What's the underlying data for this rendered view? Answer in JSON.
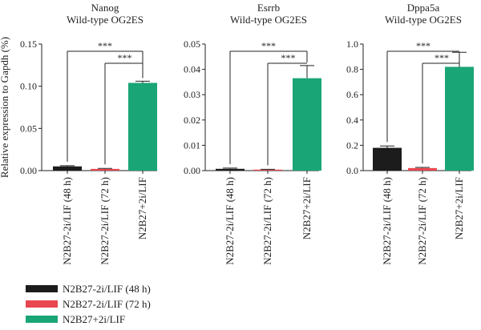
{
  "chart_data": [
    {
      "type": "bar",
      "title": "Nanog",
      "subtitle": "Wild-type OG2ES",
      "ylabel": "Relative expression to Gapdh (%)",
      "ylim": [
        0,
        0.15
      ],
      "yticks": [
        "0.00",
        "0.05",
        "0.10",
        "0.15"
      ],
      "categories": [
        "N2B27-2i/LIF (48 h)",
        "N2B27-2i/LIF (72 h)",
        "N2B27+2i/LIF"
      ],
      "values": [
        0.005,
        0.002,
        0.104
      ],
      "errors": [
        0.0008,
        0.0006,
        0.002
      ],
      "significance": [
        {
          "from": 0,
          "to": 2,
          "label": "***"
        },
        {
          "from": 1,
          "to": 2,
          "label": "***"
        }
      ]
    },
    {
      "type": "bar",
      "title": "Esrrb",
      "subtitle": "Wild-type OG2ES",
      "ylim": [
        0,
        0.05
      ],
      "yticks": [
        "0.00",
        "0.01",
        "0.02",
        "0.03",
        "0.04",
        "0.05"
      ],
      "categories": [
        "N2B27-2i/LIF (48 h)",
        "N2B27-2i/LIF (72 h)",
        "N2B27+2i/LIF"
      ],
      "values": [
        0.0007,
        0.0003,
        0.0365
      ],
      "errors": [
        0.0003,
        0.0002,
        0.005
      ],
      "significance": [
        {
          "from": 0,
          "to": 2,
          "label": "***"
        },
        {
          "from": 1,
          "to": 2,
          "label": "***"
        }
      ]
    },
    {
      "type": "bar",
      "title": "Dppa5a",
      "subtitle": "Wild-type OG2ES",
      "ylim": [
        0,
        1.0
      ],
      "yticks": [
        "0.0",
        "0.2",
        "0.4",
        "0.6",
        "0.8",
        "1.0"
      ],
      "categories": [
        "N2B27-2i/LIF (48 h)",
        "N2B27-2i/LIF (72 h)",
        "N2B27+2i/LIF"
      ],
      "values": [
        0.18,
        0.02,
        0.82
      ],
      "errors": [
        0.015,
        0.005,
        0.115
      ],
      "significance": [
        {
          "from": 0,
          "to": 2,
          "label": "***"
        },
        {
          "from": 1,
          "to": 2,
          "label": "***"
        }
      ]
    }
  ],
  "legend": [
    {
      "label": "N2B27-2i/LIF (48 h)",
      "color": "#1c1c1c"
    },
    {
      "label": "N2B27-2i/LIF (72 h)",
      "color": "#e8474f"
    },
    {
      "label": "N2B27+2i/LIF",
      "color": "#1aa577"
    }
  ],
  "colors": [
    "#1c1c1c",
    "#e8474f",
    "#1aa577"
  ]
}
